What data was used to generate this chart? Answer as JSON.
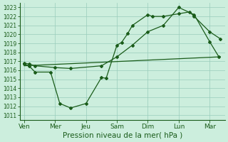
{
  "xlabel": "Pression niveau de la mer( hPa )",
  "ylim_min": 1011,
  "ylim_max": 1023,
  "yticks": [
    1011,
    1012,
    1013,
    1014,
    1015,
    1016,
    1017,
    1018,
    1019,
    1020,
    1021,
    1022,
    1023
  ],
  "x_labels": [
    "Ven",
    "Mer",
    "Jeu",
    "Sam",
    "Dim",
    "Lun",
    "Mar"
  ],
  "x_tick_positions": [
    0,
    1,
    2,
    3,
    4,
    5,
    6
  ],
  "xlim_min": -0.15,
  "xlim_max": 6.5,
  "line_color": "#1a5c1a",
  "bg_color": "#cceedd",
  "grid_color": "#99ccbb",
  "xlabel_fontsize": 7.5,
  "ytick_fontsize": 5.5,
  "xtick_fontsize": 6.5,
  "linewidth": 0.9,
  "markersize": 2.0,
  "line1_x": [
    0.0,
    0.15,
    0.35,
    0.85,
    1.15,
    1.5,
    2.0,
    2.5,
    2.65,
    3.0,
    3.15,
    3.35,
    3.5,
    4.0,
    4.15,
    4.5,
    5.0,
    5.35,
    5.5,
    6.0,
    6.35
  ],
  "line1_y": [
    1016.7,
    1016.5,
    1015.8,
    1015.8,
    1012.3,
    1011.8,
    1012.3,
    1015.2,
    1015.1,
    1018.8,
    1019.1,
    1020.1,
    1021.0,
    1022.2,
    1022.0,
    1022.0,
    1022.3,
    1022.5,
    1022.0,
    1020.3,
    1019.5
  ],
  "line2_x": [
    0.0,
    0.15,
    0.35,
    1.0,
    1.5,
    2.5,
    3.0,
    3.5,
    4.0,
    4.5,
    5.0,
    5.5,
    6.0,
    6.3
  ],
  "line2_y": [
    1016.8,
    1016.7,
    1016.5,
    1016.3,
    1016.2,
    1016.5,
    1017.5,
    1018.8,
    1020.3,
    1021.0,
    1023.0,
    1022.2,
    1019.2,
    1017.5
  ],
  "line3_x": [
    0.0,
    6.35
  ],
  "line3_y": [
    1016.5,
    1017.5
  ]
}
